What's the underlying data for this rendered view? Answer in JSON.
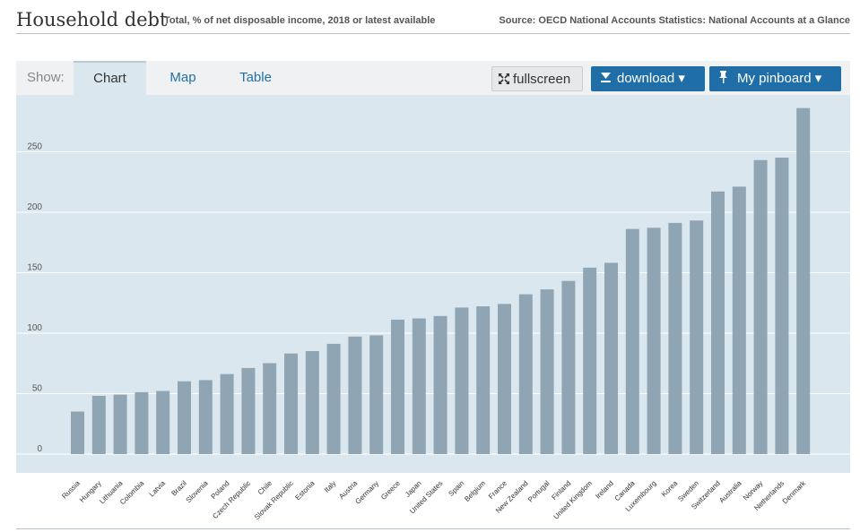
{
  "header": {
    "title": "Household debt",
    "subtitle": "Total, % of net disposable income, 2018 or latest available",
    "source": "Source: OECD National Accounts Statistics: National Accounts at a Glance"
  },
  "toolbar": {
    "show_label": "Show:",
    "tabs": [
      {
        "label": "Chart",
        "active": true
      },
      {
        "label": "Map",
        "active": false
      },
      {
        "label": "Table",
        "active": false
      }
    ],
    "fullscreen_label": "fullscreen",
    "download_label": "download ▾",
    "pinboard_label": "My pinboard ▾",
    "icons": {
      "fullscreen": "expand-arrows-icon",
      "download": "download-icon",
      "pinboard": "pin-icon"
    }
  },
  "colors": {
    "bar": "#8fa5b3",
    "plot_background": "#dbe7ef",
    "gridline": "#ffffff",
    "accent": "#1f6ea7"
  },
  "chart_data": {
    "type": "bar",
    "title": "Household debt",
    "ylabel": "",
    "xlabel": "",
    "ylim": [
      -5,
      285
    ],
    "yticks": [
      0,
      50,
      100,
      150,
      200,
      250
    ],
    "grid": true,
    "categories": [
      "Russia",
      "Hungary",
      "Lithuania",
      "Colombia",
      "Latvia",
      "Brazil",
      "Slovenia",
      "Poland",
      "Czech Republic",
      "Chile",
      "Slovak Republic",
      "Estonia",
      "Italy",
      "Austria",
      "Germany",
      "Greece",
      "Japan",
      "United States",
      "Spain",
      "Belgium",
      "France",
      "New Zealand",
      "Portugal",
      "Finland",
      "United Kingdom",
      "Ireland",
      "Canada",
      "Luxembourg",
      "Korea",
      "Sweden",
      "Switzerland",
      "Australia",
      "Norway",
      "Netherlands",
      "Denmark"
    ],
    "values": [
      30,
      43,
      44,
      46,
      47,
      55,
      56,
      61,
      66,
      70,
      78,
      80,
      86,
      92,
      93,
      106,
      107,
      109,
      116,
      117,
      119,
      127,
      131,
      138,
      149,
      153,
      181,
      182,
      186,
      188,
      212,
      216,
      238,
      240,
      281
    ]
  }
}
